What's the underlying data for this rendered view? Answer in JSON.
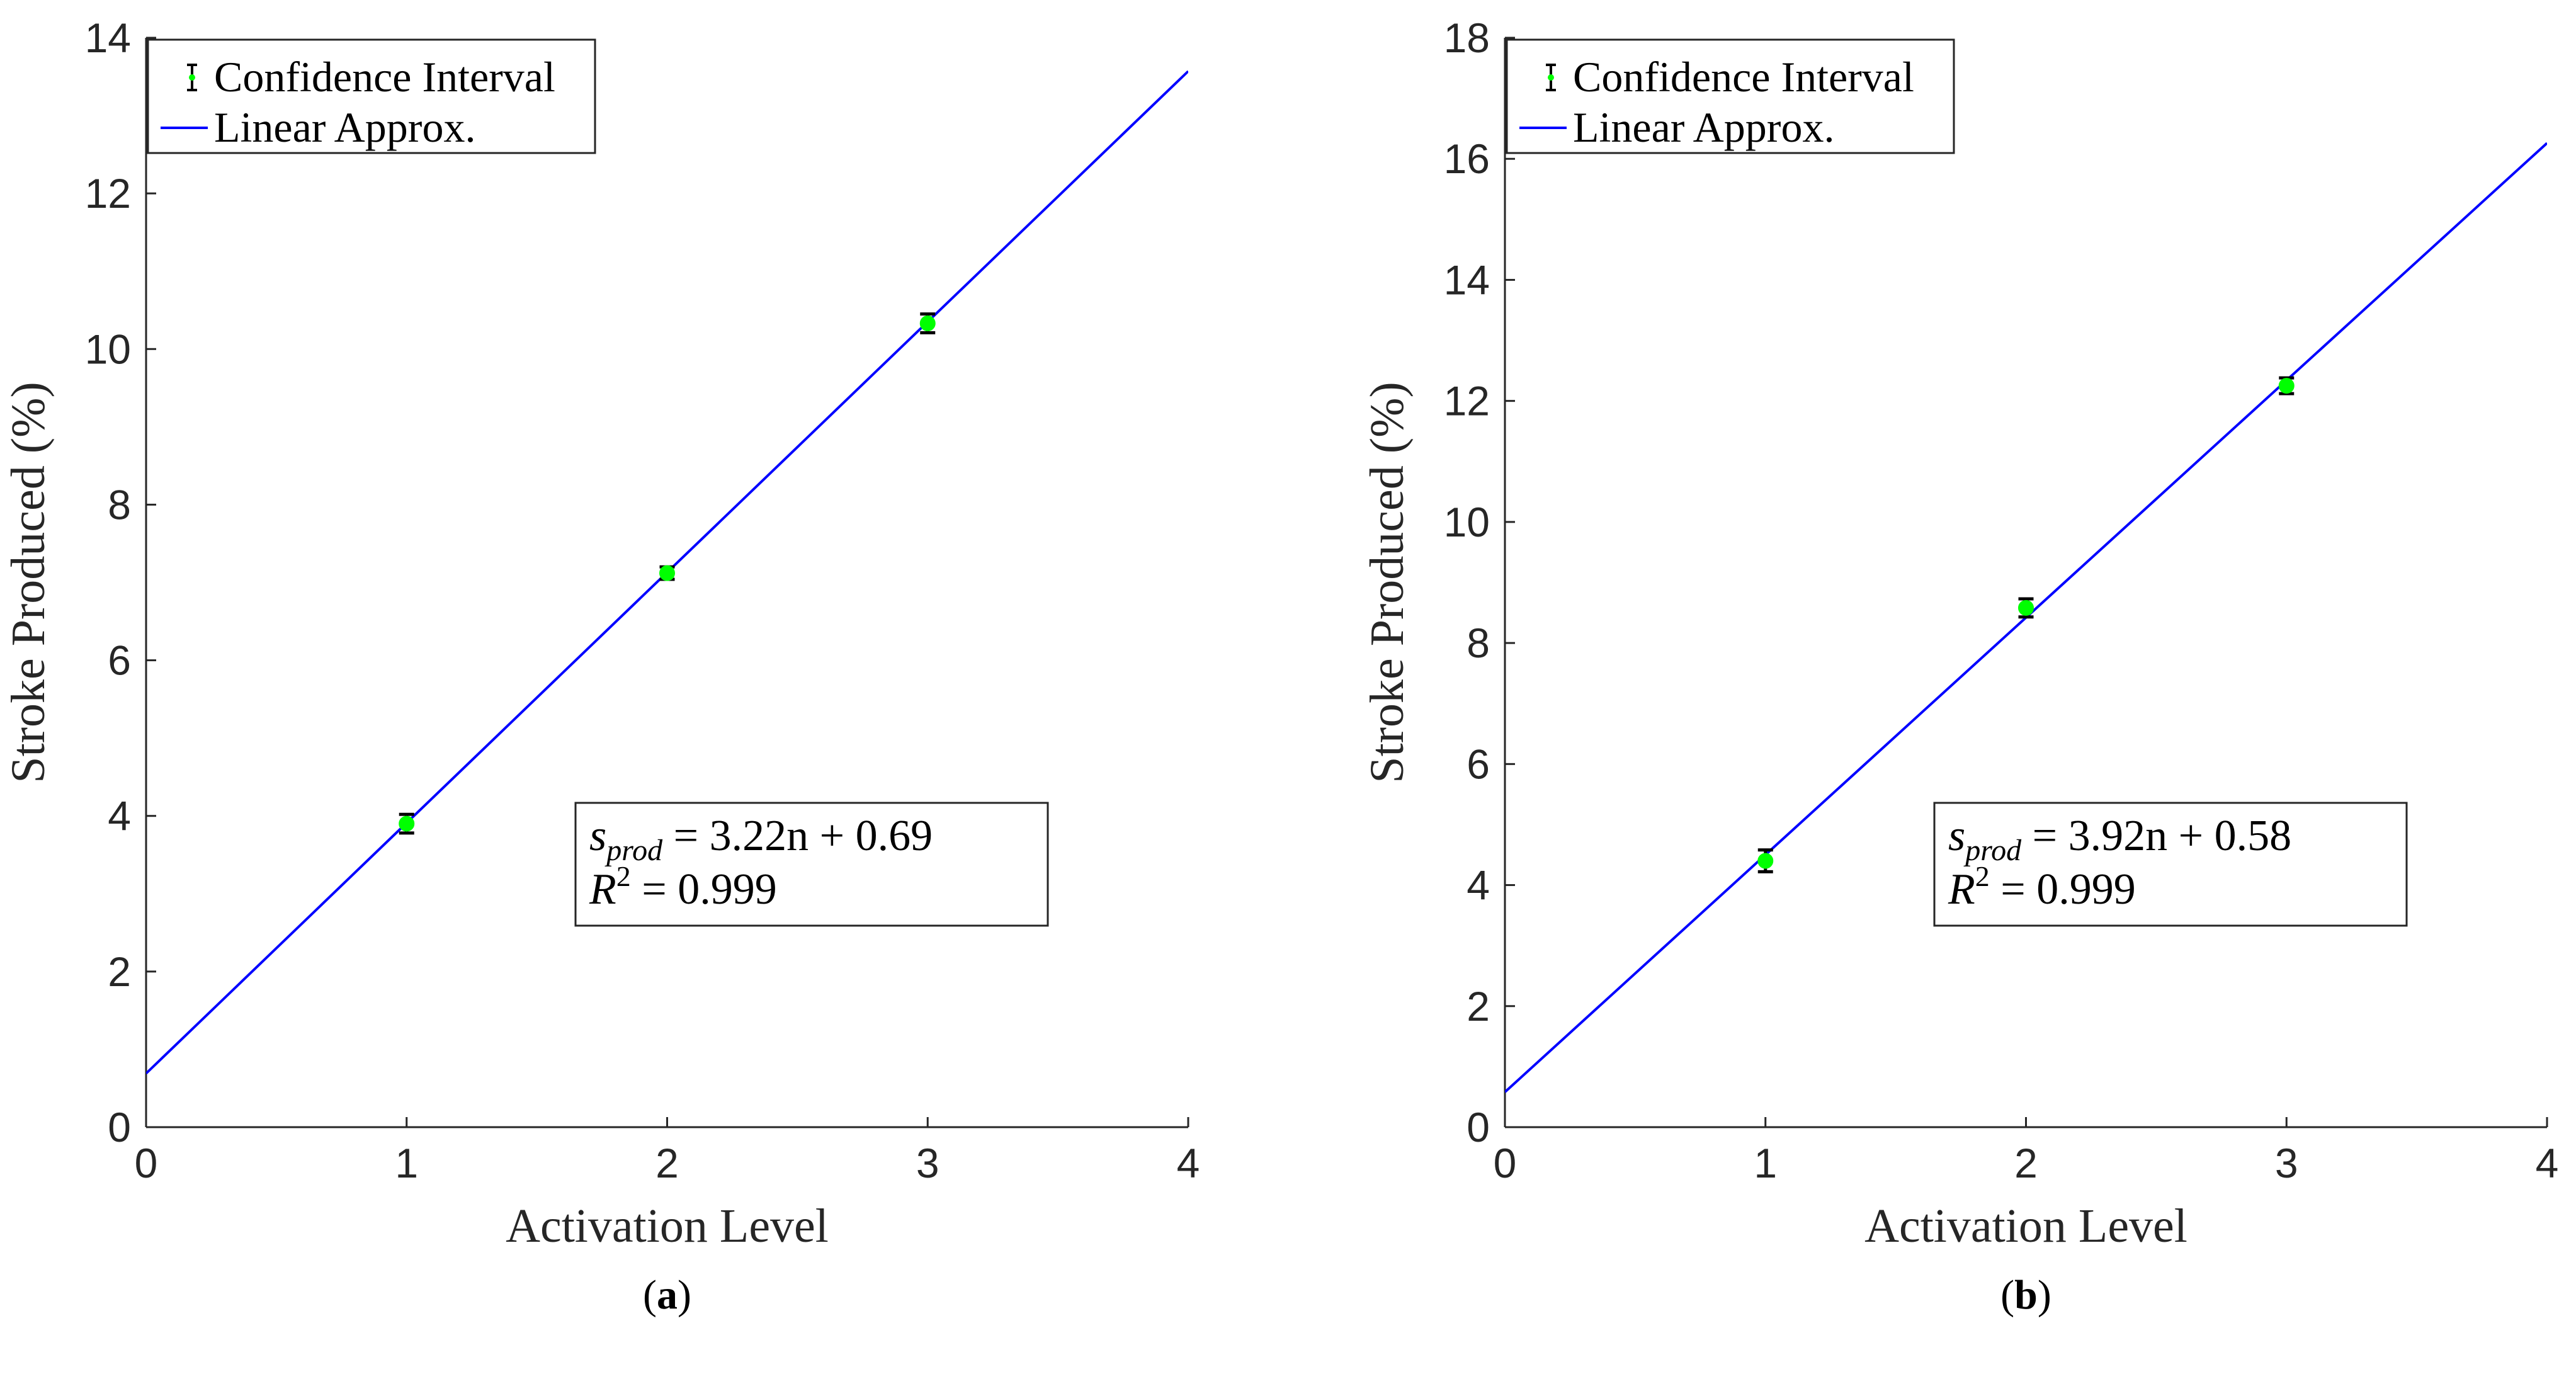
{
  "chart_data": [
    {
      "type": "scatter",
      "panel_label": "a",
      "xlabel": "Activation Level",
      "ylabel": "Stroke Produced (%)",
      "xlim": [
        0,
        4
      ],
      "ylim": [
        0,
        14
      ],
      "xticks": [
        0,
        1,
        2,
        3,
        4
      ],
      "yticks": [
        0,
        2,
        4,
        6,
        8,
        10,
        12,
        14
      ],
      "points": [
        {
          "x": 1,
          "y": 3.9,
          "err": 0.12
        },
        {
          "x": 2,
          "y": 7.12,
          "err": 0.08
        },
        {
          "x": 3,
          "y": 10.33,
          "err": 0.12
        }
      ],
      "fit": {
        "slope": 3.22,
        "intercept": 0.69
      },
      "legend": {
        "position": "top-left",
        "entries": [
          "Confidence Interval",
          "Linear Approx."
        ]
      },
      "annotation": {
        "eq_lhs": "s",
        "eq_sub": "prod",
        "eq_rhs": " = 3.22n + 0.69",
        "r2_lhs": "R",
        "r2_sup": "2",
        "r2_rhs": " = 0.999"
      },
      "colors": {
        "line": "#0000ff",
        "marker": "#00ff00",
        "errorbar": "#000000"
      }
    },
    {
      "type": "scatter",
      "panel_label": "b",
      "xlabel": "Activation Level",
      "ylabel": "Stroke Produced (%)",
      "xlim": [
        0,
        4
      ],
      "ylim": [
        0,
        18
      ],
      "xticks": [
        0,
        1,
        2,
        3,
        4
      ],
      "yticks": [
        0,
        2,
        4,
        6,
        8,
        10,
        12,
        14,
        16,
        18
      ],
      "points": [
        {
          "x": 1,
          "y": 4.4,
          "err": 0.18
        },
        {
          "x": 2,
          "y": 8.58,
          "err": 0.15
        },
        {
          "x": 3,
          "y": 12.25,
          "err": 0.13
        }
      ],
      "fit": {
        "slope": 3.92,
        "intercept": 0.58
      },
      "legend": {
        "position": "top-left",
        "entries": [
          "Confidence Interval",
          "Linear Approx."
        ]
      },
      "annotation": {
        "eq_lhs": "s",
        "eq_sub": "prod",
        "eq_rhs": " = 3.92n + 0.58",
        "r2_lhs": "R",
        "r2_sup": "2",
        "r2_rhs": " = 0.999"
      },
      "colors": {
        "line": "#0000ff",
        "marker": "#00ff00",
        "errorbar": "#000000"
      }
    }
  ]
}
